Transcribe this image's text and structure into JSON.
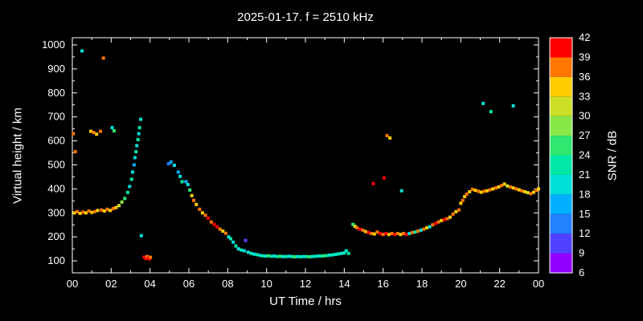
{
  "page": {
    "background": "#000000",
    "text_color": "#ffffff"
  },
  "chart_data": {
    "type": "scatter",
    "title": "2025-01-17. f = 2510 kHz",
    "xlabel": "UT Time / hrs",
    "ylabel": "Virtual height / km",
    "xlim": [
      0,
      24
    ],
    "ylim": [
      50,
      1030
    ],
    "x_ticks": [
      0,
      2,
      4,
      6,
      8,
      10,
      12,
      14,
      16,
      18,
      20,
      22,
      24
    ],
    "x_tick_labels": [
      "00",
      "02",
      "04",
      "06",
      "08",
      "10",
      "12",
      "14",
      "16",
      "18",
      "20",
      "22",
      "00"
    ],
    "y_ticks": [
      100,
      200,
      300,
      400,
      500,
      600,
      700,
      800,
      900,
      1000
    ],
    "grid": false,
    "legend_position": "colorbar-right",
    "colorbar": {
      "label": "SNR / dB",
      "min": 6,
      "max": 42,
      "step": 3,
      "ticks": [
        6,
        9,
        12,
        15,
        18,
        21,
        24,
        27,
        30,
        33,
        36,
        39,
        42
      ],
      "colors": [
        "#9000ff",
        "#5040ff",
        "#2080ff",
        "#00b0ff",
        "#00e0d8",
        "#00e8a8",
        "#30e870",
        "#88e848",
        "#cce028",
        "#ffcc00",
        "#ff7700",
        "#ff0000"
      ]
    },
    "points_format": [
      "ut_hours",
      "virtual_height_km",
      "snr_db"
    ],
    "points": [
      [
        0.05,
        630,
        36
      ],
      [
        0.15,
        555,
        36
      ],
      [
        0.1,
        300,
        33
      ],
      [
        0.25,
        305,
        36
      ],
      [
        0.4,
        298,
        33
      ],
      [
        0.55,
        303,
        36
      ],
      [
        0.7,
        300,
        33
      ],
      [
        0.85,
        308,
        36
      ],
      [
        1.0,
        302,
        33
      ],
      [
        0.5,
        975,
        18
      ],
      [
        0.95,
        640,
        33
      ],
      [
        1.1,
        635,
        36
      ],
      [
        1.25,
        628,
        33
      ],
      [
        1.45,
        640,
        36
      ],
      [
        1.6,
        945,
        36
      ],
      [
        1.15,
        305,
        36
      ],
      [
        1.3,
        310,
        33
      ],
      [
        1.5,
        312,
        36
      ],
      [
        1.65,
        308,
        33
      ],
      [
        1.8,
        315,
        36
      ],
      [
        1.95,
        310,
        33
      ],
      [
        2.1,
        318,
        36
      ],
      [
        2.25,
        322,
        33
      ],
      [
        2.05,
        655,
        18
      ],
      [
        2.15,
        642,
        24
      ],
      [
        2.4,
        330,
        30
      ],
      [
        2.55,
        345,
        27
      ],
      [
        2.7,
        360,
        24
      ],
      [
        2.85,
        385,
        21
      ],
      [
        2.95,
        410,
        18
      ],
      [
        3.05,
        440,
        21
      ],
      [
        3.1,
        470,
        18
      ],
      [
        3.18,
        500,
        15
      ],
      [
        3.22,
        530,
        18
      ],
      [
        3.28,
        555,
        21
      ],
      [
        3.32,
        580,
        18
      ],
      [
        3.38,
        605,
        21
      ],
      [
        3.42,
        630,
        18
      ],
      [
        3.46,
        655,
        21
      ],
      [
        3.52,
        690,
        18
      ],
      [
        3.55,
        205,
        18
      ],
      [
        3.7,
        115,
        39
      ],
      [
        3.78,
        110,
        42
      ],
      [
        3.85,
        118,
        36
      ],
      [
        3.92,
        112,
        39
      ],
      [
        3.98,
        108,
        42
      ],
      [
        4.02,
        115,
        36
      ],
      [
        4.95,
        505,
        12
      ],
      [
        5.08,
        512,
        15
      ],
      [
        5.25,
        498,
        18
      ],
      [
        5.45,
        470,
        15
      ],
      [
        5.55,
        452,
        18
      ],
      [
        5.65,
        430,
        21
      ],
      [
        5.85,
        430,
        15
      ],
      [
        5.95,
        418,
        18
      ],
      [
        6.05,
        395,
        24
      ],
      [
        6.15,
        372,
        33
      ],
      [
        6.25,
        352,
        36
      ],
      [
        6.38,
        335,
        33
      ],
      [
        6.55,
        315,
        36
      ],
      [
        6.7,
        300,
        33
      ],
      [
        6.85,
        290,
        36
      ],
      [
        7.0,
        278,
        39
      ],
      [
        7.15,
        262,
        36
      ],
      [
        7.3,
        252,
        42
      ],
      [
        7.45,
        242,
        39
      ],
      [
        7.6,
        232,
        36
      ],
      [
        7.75,
        224,
        33
      ],
      [
        7.9,
        215,
        36
      ],
      [
        8.05,
        200,
        18
      ],
      [
        8.15,
        192,
        21
      ],
      [
        8.28,
        178,
        18
      ],
      [
        8.42,
        162,
        21
      ],
      [
        8.55,
        150,
        18
      ],
      [
        8.7,
        145,
        21
      ],
      [
        8.85,
        142,
        18
      ],
      [
        8.92,
        185,
        9
      ],
      [
        9.05,
        136,
        18
      ],
      [
        9.2,
        131,
        21
      ],
      [
        9.35,
        128,
        18
      ],
      [
        9.5,
        126,
        21
      ],
      [
        9.65,
        123,
        18
      ],
      [
        9.8,
        121,
        21
      ],
      [
        9.95,
        120,
        18
      ],
      [
        10.1,
        121,
        24
      ],
      [
        10.25,
        119,
        21
      ],
      [
        10.4,
        120,
        18
      ],
      [
        10.55,
        118,
        21
      ],
      [
        10.7,
        119,
        24
      ],
      [
        10.85,
        118,
        18
      ],
      [
        11.0,
        118,
        21
      ],
      [
        11.15,
        119,
        18
      ],
      [
        11.3,
        118,
        21
      ],
      [
        11.45,
        117,
        24
      ],
      [
        11.6,
        118,
        18
      ],
      [
        11.75,
        117,
        21
      ],
      [
        11.9,
        118,
        18
      ],
      [
        12.05,
        118,
        21
      ],
      [
        12.2,
        117,
        24
      ],
      [
        12.35,
        118,
        18
      ],
      [
        12.5,
        119,
        21
      ],
      [
        12.65,
        120,
        18
      ],
      [
        12.8,
        120,
        21
      ],
      [
        12.95,
        121,
        24
      ],
      [
        13.1,
        122,
        21
      ],
      [
        13.25,
        124,
        18
      ],
      [
        13.4,
        125,
        21
      ],
      [
        13.55,
        127,
        18
      ],
      [
        13.7,
        129,
        21
      ],
      [
        13.85,
        131,
        18
      ],
      [
        14.0,
        133,
        21
      ],
      [
        14.1,
        142,
        18
      ],
      [
        14.22,
        131,
        21
      ],
      [
        14.45,
        252,
        24
      ],
      [
        14.55,
        244,
        30
      ],
      [
        14.65,
        238,
        36
      ],
      [
        14.8,
        232,
        39
      ],
      [
        14.95,
        228,
        36
      ],
      [
        15.1,
        222,
        33
      ],
      [
        15.25,
        218,
        39
      ],
      [
        15.4,
        214,
        36
      ],
      [
        15.55,
        212,
        33
      ],
      [
        15.5,
        422,
        42
      ],
      [
        15.7,
        220,
        36
      ],
      [
        15.85,
        214,
        39
      ],
      [
        16.05,
        446,
        42
      ],
      [
        16.0,
        210,
        36
      ],
      [
        16.15,
        214,
        39
      ],
      [
        16.3,
        210,
        33
      ],
      [
        16.2,
        622,
        36
      ],
      [
        16.35,
        612,
        33
      ],
      [
        16.45,
        214,
        36
      ],
      [
        16.6,
        210,
        39
      ],
      [
        16.75,
        214,
        36
      ],
      [
        16.9,
        210,
        33
      ],
      [
        16.95,
        392,
        18
      ],
      [
        17.05,
        214,
        36
      ],
      [
        17.2,
        210,
        39
      ],
      [
        17.35,
        214,
        18
      ],
      [
        17.5,
        218,
        36
      ],
      [
        17.65,
        220,
        21
      ],
      [
        17.8,
        224,
        36
      ],
      [
        17.95,
        228,
        18
      ],
      [
        18.1,
        232,
        36
      ],
      [
        18.25,
        238,
        33
      ],
      [
        18.4,
        242,
        18
      ],
      [
        18.55,
        250,
        36
      ],
      [
        18.7,
        256,
        39
      ],
      [
        18.85,
        262,
        36
      ],
      [
        19.0,
        268,
        33
      ],
      [
        19.15,
        272,
        39
      ],
      [
        19.3,
        276,
        36
      ],
      [
        19.45,
        282,
        33
      ],
      [
        19.6,
        295,
        36
      ],
      [
        19.75,
        305,
        33
      ],
      [
        19.9,
        312,
        36
      ],
      [
        20.0,
        340,
        33
      ],
      [
        20.1,
        352,
        36
      ],
      [
        20.2,
        368,
        33
      ],
      [
        20.3,
        378,
        36
      ],
      [
        20.45,
        388,
        33
      ],
      [
        20.6,
        398,
        36
      ],
      [
        20.75,
        394,
        33
      ],
      [
        20.9,
        390,
        36
      ],
      [
        21.05,
        386,
        33
      ],
      [
        21.2,
        390,
        36
      ],
      [
        21.15,
        756,
        18
      ],
      [
        21.35,
        392,
        33
      ],
      [
        21.5,
        396,
        36
      ],
      [
        21.55,
        722,
        21
      ],
      [
        21.65,
        400,
        33
      ],
      [
        21.8,
        404,
        36
      ],
      [
        21.95,
        408,
        33
      ],
      [
        22.1,
        414,
        36
      ],
      [
        22.25,
        420,
        33
      ],
      [
        22.4,
        412,
        30
      ],
      [
        22.55,
        408,
        36
      ],
      [
        22.7,
        746,
        18
      ],
      [
        22.7,
        404,
        33
      ],
      [
        22.85,
        400,
        36
      ],
      [
        23.0,
        396,
        33
      ],
      [
        23.15,
        392,
        36
      ],
      [
        23.3,
        388,
        33
      ],
      [
        23.45,
        384,
        30
      ],
      [
        23.6,
        380,
        36
      ],
      [
        23.75,
        386,
        33
      ],
      [
        23.9,
        394,
        36
      ],
      [
        24.0,
        400,
        33
      ]
    ]
  }
}
